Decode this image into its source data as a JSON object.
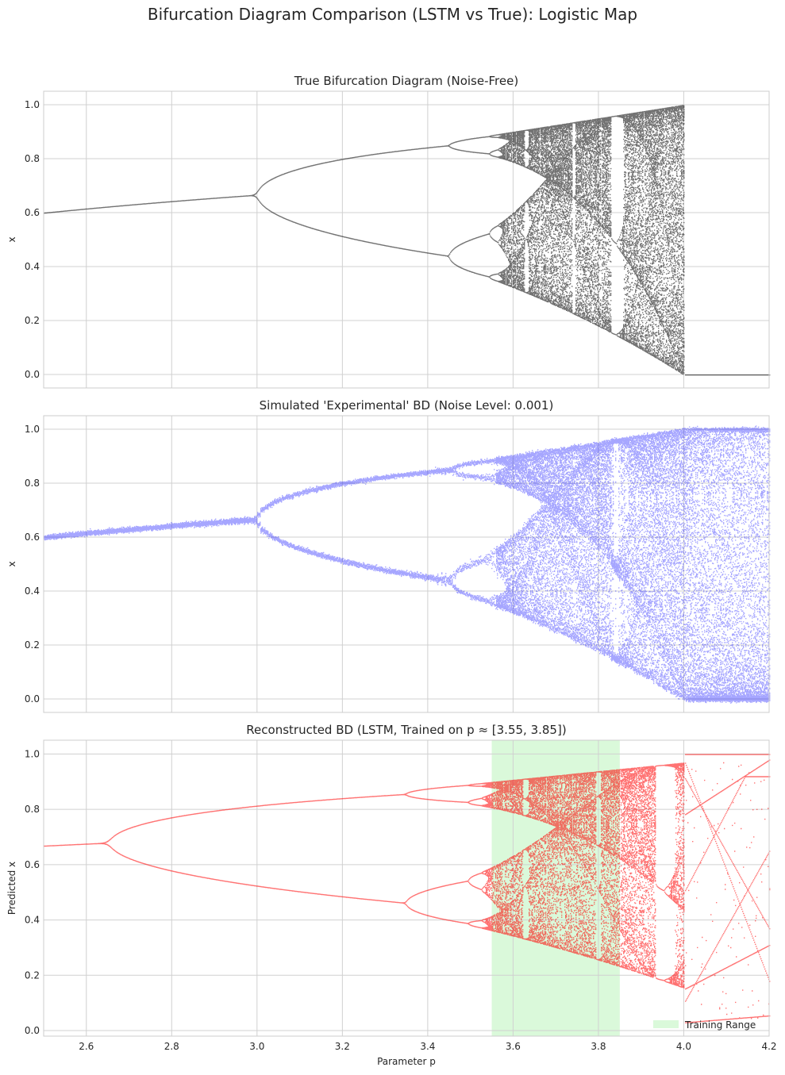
{
  "figure": {
    "title": "Bifurcation Diagram Comparison (LSTM vs True): Logistic Map"
  },
  "chart_data": [
    {
      "type": "scatter",
      "title": "True Bifurcation Diagram (Noise-Free)",
      "xlabel": "",
      "ylabel": "x",
      "xlim": [
        2.5,
        4.2
      ],
      "ylim": [
        -0.05,
        1.05
      ],
      "xticks": [
        "2.6",
        "2.8",
        "3.0",
        "3.2",
        "3.4",
        "3.6",
        "3.8",
        "4.0",
        "4.2"
      ],
      "yticks": [
        "0.0",
        "0.2",
        "0.4",
        "0.6",
        "0.8",
        "1.0"
      ],
      "x_tick_labels_visible": false,
      "grid": true,
      "color": "#000000",
      "series": [
        {
          "model": "logistic map x_{n+1} = p x_n (1 - x_n)",
          "p_range": [
            2.5,
            4.0
          ],
          "beyond_range_value": 0.0
        }
      ]
    },
    {
      "type": "scatter",
      "title": "Simulated 'Experimental' BD (Noise Level: 0.001)",
      "xlabel": "",
      "ylabel": "x",
      "xlim": [
        2.5,
        4.2
      ],
      "ylim": [
        -0.05,
        1.05
      ],
      "xticks": [
        "2.6",
        "2.8",
        "3.0",
        "3.2",
        "3.4",
        "3.6",
        "3.8",
        "4.0",
        "4.2"
      ],
      "yticks": [
        "0.0",
        "0.2",
        "0.4",
        "0.6",
        "0.8",
        "1.0"
      ],
      "x_tick_labels_visible": false,
      "grid": true,
      "color": "#0000ff",
      "noise_level": 0.001,
      "series": [
        {
          "model": "noisy logistic map, clipped to [0, 1]",
          "p_range": [
            2.5,
            4.2
          ]
        }
      ]
    },
    {
      "type": "scatter",
      "title": "Reconstructed BD (LSTM, Trained on p ≈ [3.55, 3.85])",
      "xlabel": "Parameter p",
      "ylabel": "Predicted x",
      "xlim": [
        2.5,
        4.2
      ],
      "ylim": [
        -0.02,
        1.05
      ],
      "xticks": [
        "2.6",
        "2.8",
        "3.0",
        "3.2",
        "3.4",
        "3.6",
        "3.8",
        "4.0",
        "4.2"
      ],
      "yticks": [
        "0.0",
        "0.2",
        "0.4",
        "0.6",
        "0.8",
        "1.0"
      ],
      "x_tick_labels_visible": true,
      "grid": true,
      "color": "#ff0000",
      "shaded_region": {
        "x": [
          3.55,
          3.85
        ],
        "color": "#90ee90",
        "label": "Training Range"
      },
      "legend": {
        "position": "lower right",
        "entries": [
          "Training Range"
        ]
      },
      "series": [
        {
          "model": "effective map with shifted parameter (first doubling at p≈2.63, chaos onset p≈3.55)",
          "p_range": [
            2.5,
            4.0
          ]
        },
        {
          "model": "sparse scattered points with diagonal streaks",
          "p_range": [
            4.0,
            4.2
          ]
        }
      ]
    }
  ]
}
